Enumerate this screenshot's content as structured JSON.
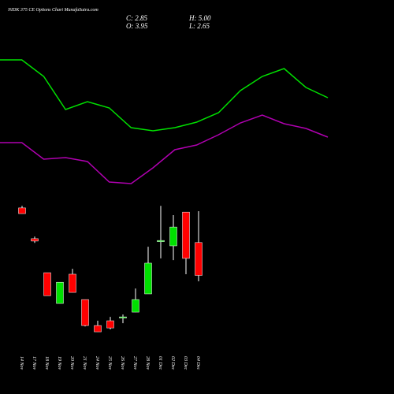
{
  "header": {
    "title": "NIDK 375 CE Options Chart MunafaSutra.com",
    "info": [
      "C: 2.85",
      "H: 5.00",
      "O: 3.95",
      "L: 2.65"
    ]
  },
  "chart_data": [
    {
      "type": "candlestick",
      "categories": [
        "14 Nov",
        "17 Nov",
        "18 Nov",
        "19 Nov",
        "20 Nov",
        "21 Nov",
        "24 Nov",
        "25 Nov",
        "26 Nov",
        "27 Nov",
        "28 Nov",
        "01 Dec",
        "02 Dec",
        "03 Dec",
        "04 Dec"
      ],
      "open": [
        5.11,
        4.08,
        2.94,
        1.91,
        2.89,
        2.04,
        1.17,
        1.33,
        1.44,
        1.62,
        2.23,
        4.0,
        3.84,
        4.97,
        3.95
      ],
      "high": [
        5.18,
        4.15,
        2.94,
        2.62,
        3.07,
        2.04,
        1.33,
        1.46,
        1.54,
        2.41,
        3.81,
        5.18,
        4.87,
        4.97,
        5.0
      ],
      "low": [
        4.92,
        3.94,
        2.17,
        1.91,
        2.28,
        1.14,
        0.96,
        1.04,
        1.25,
        1.62,
        2.23,
        3.42,
        3.36,
        2.89,
        2.65
      ],
      "close": [
        4.92,
        4.0,
        2.17,
        2.62,
        2.28,
        1.17,
        0.96,
        1.09,
        1.46,
        2.04,
        3.26,
        4.02,
        4.47,
        3.42,
        2.85
      ],
      "up_color": "#00e000",
      "down_color": "#ff0000",
      "wick_color": "#ffffff",
      "ylim": [
        0.5,
        5.5
      ]
    },
    {
      "type": "line",
      "series": [
        {
          "color": "#00e000",
          "values": [
            8.7,
            8.7,
            7.65,
            5.55,
            6.05,
            5.65,
            4.4,
            4.2,
            4.4,
            4.75,
            5.35,
            6.75,
            7.65,
            8.15,
            6.95,
            6.3
          ]
        },
        {
          "color": "#b000b0",
          "values": [
            3.45,
            3.45,
            2.4,
            2.5,
            2.25,
            0.95,
            0.85,
            1.85,
            3.0,
            3.3,
            3.95,
            4.7,
            5.2,
            4.65,
            4.35,
            3.8
          ]
        }
      ],
      "ylim": [
        0,
        10
      ]
    }
  ]
}
